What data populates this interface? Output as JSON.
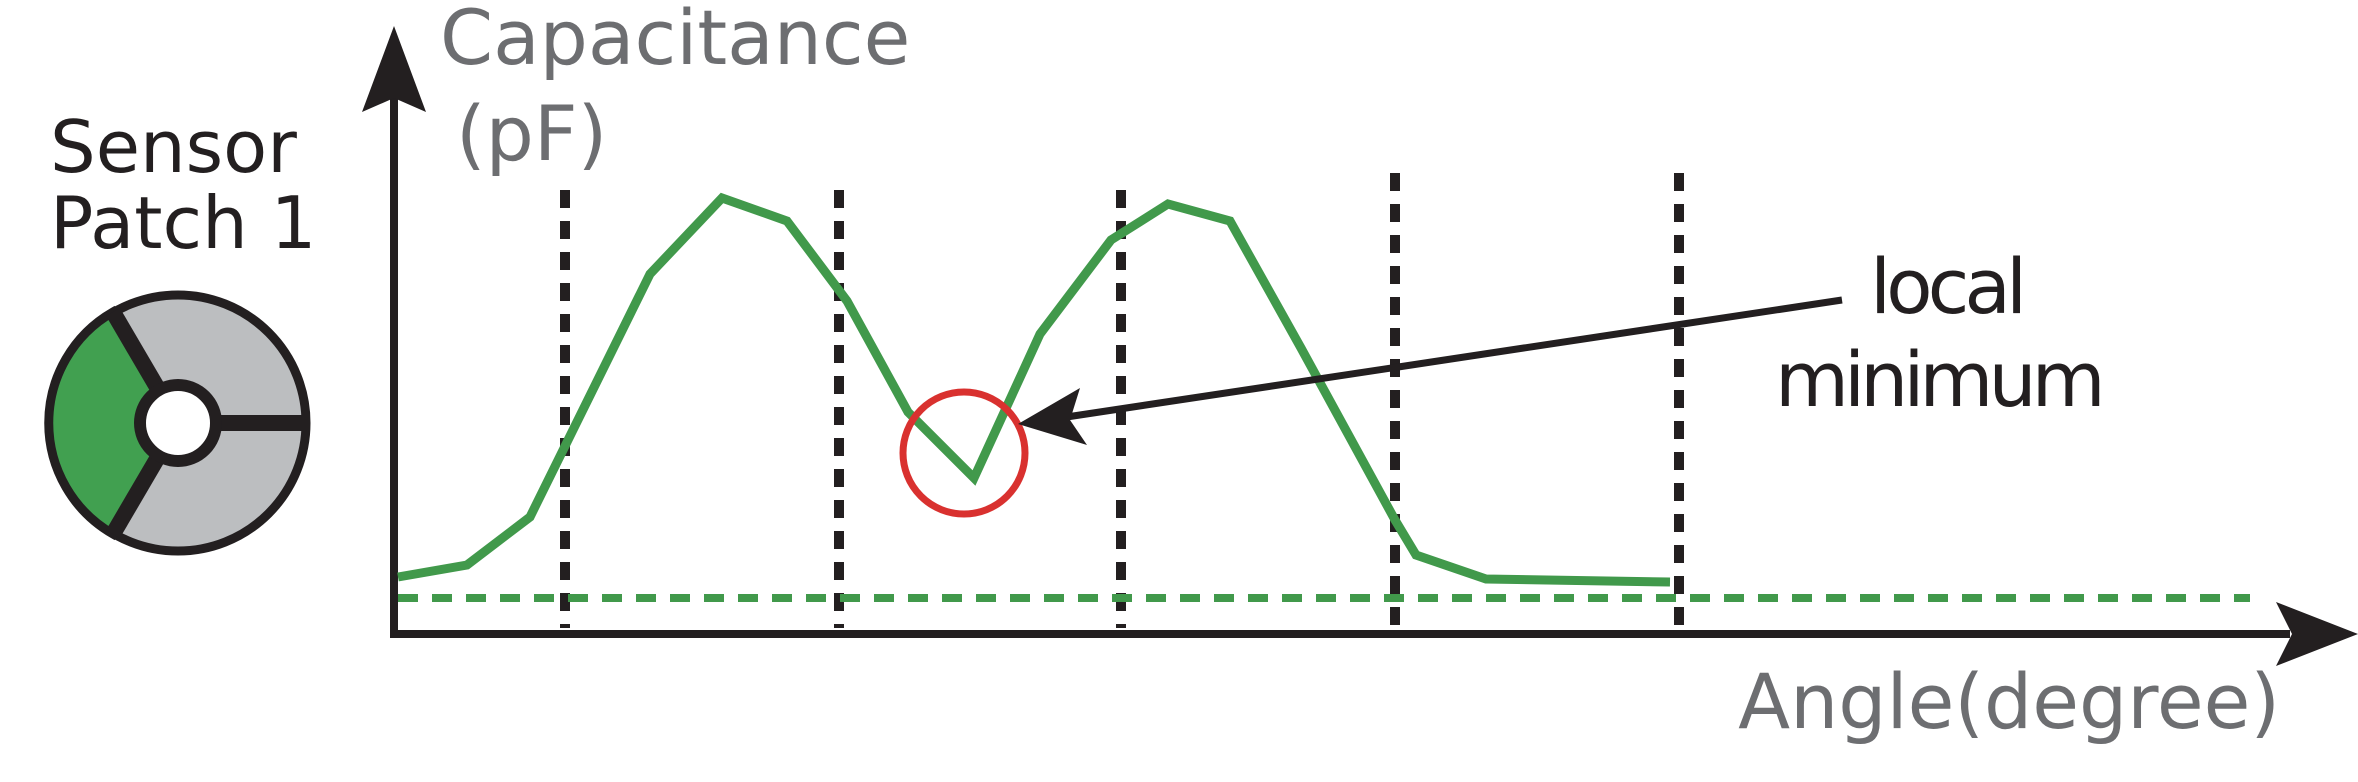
{
  "sensor": {
    "label_line1": "Sensor",
    "label_line2": "Patch 1",
    "active_color": "#41a050",
    "inactive_color": "#bcbec0"
  },
  "axes": {
    "ylabel_line1": "Capacitance",
    "ylabel_line2": "(pF)",
    "xlabel": "Angle(degree)"
  },
  "annotation": {
    "line1": "local",
    "line2": "minimum",
    "circle_color": "#d9312f"
  },
  "colors": {
    "curve": "#41994b",
    "axis": "#231f20",
    "baseline": "#41994b"
  }
}
